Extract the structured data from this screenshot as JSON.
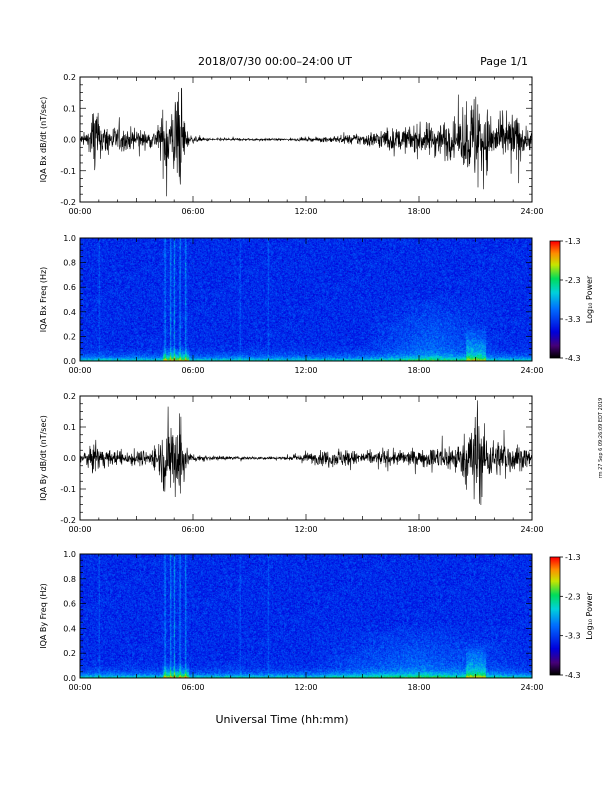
{
  "header": {
    "title": "2018/07/30  00:00–24:00 UT",
    "page": "Page 1/1"
  },
  "side_note": "rm 27 Sep 6 09:26:09 EDT 2019",
  "footer": {
    "xlabel": "Universal Time (hh:mm)"
  },
  "chart_data": [
    {
      "type": "line",
      "ylabel": "IQA Bx dB/dt (nT/sec)",
      "xlim": [
        0,
        24
      ],
      "ylim": [
        -0.2,
        0.2
      ],
      "x_ticklabels": [
        "00:00",
        "06:00",
        "12:00",
        "18:00",
        "24:00"
      ],
      "y_ticklabels": [
        "0.2",
        "0.1",
        "0.0",
        "-0.1",
        "-0.2"
      ],
      "envelope_x": [
        0,
        0.5,
        0.8,
        1.0,
        1.5,
        2.0,
        2.5,
        3.0,
        3.5,
        4.0,
        4.3,
        4.6,
        4.8,
        5.0,
        5.2,
        5.4,
        5.6,
        5.8,
        6.2,
        7.0,
        8.0,
        9.0,
        10.0,
        11.0,
        12.0,
        13.0,
        14.0,
        15.0,
        16.0,
        17.0,
        18.0,
        19.0,
        19.5,
        20.0,
        20.5,
        21.0,
        21.2,
        21.5,
        21.8,
        22.0,
        22.5,
        23.0,
        23.5,
        24.0
      ],
      "envelope_amp": [
        0.02,
        0.04,
        0.2,
        0.07,
        0.06,
        0.05,
        0.04,
        0.05,
        0.03,
        0.04,
        0.08,
        0.2,
        0.09,
        0.18,
        0.2,
        0.2,
        0.06,
        0.02,
        0.01,
        0.005,
        0.005,
        0.004,
        0.004,
        0.004,
        0.006,
        0.01,
        0.015,
        0.025,
        0.04,
        0.045,
        0.06,
        0.07,
        0.08,
        0.06,
        0.12,
        0.2,
        0.2,
        0.12,
        0.12,
        0.09,
        0.07,
        0.12,
        0.06,
        0.04
      ]
    },
    {
      "type": "heatmap",
      "ylabel": "IQA Bx Freq (Hz)",
      "xlim": [
        0,
        24
      ],
      "ylim": [
        0,
        1.0
      ],
      "x_ticklabels": [
        "00:00",
        "06:00",
        "12:00",
        "18:00",
        "24:00"
      ],
      "y_ticklabels": [
        "1.0",
        "0.8",
        "0.6",
        "0.4",
        "0.2",
        "0.0"
      ],
      "colorbar": {
        "label": "Log₁₀ Power",
        "range": [
          -4.3,
          -1.3
        ],
        "ticklabels": [
          "-1.3",
          "-2.3",
          "-3.3",
          "-4.3"
        ]
      },
      "bright_bands_hours": [
        1.0,
        4.5,
        4.8,
        5.0,
        5.3,
        5.6,
        8.5,
        10.0
      ],
      "enhanced_region": {
        "x": [
          15,
          22.5
        ],
        "y": [
          0.0,
          0.55
        ]
      }
    },
    {
      "type": "line",
      "ylabel": "IQA By dB/dt (nT/sec)",
      "xlim": [
        0,
        24
      ],
      "ylim": [
        -0.2,
        0.2
      ],
      "x_ticklabels": [
        "00:00",
        "06:00",
        "12:00",
        "18:00",
        "24:00"
      ],
      "y_ticklabels": [
        "0.2",
        "0.1",
        "0.0",
        "-0.1",
        "-0.2"
      ],
      "envelope_x": [
        0,
        0.5,
        0.8,
        1.0,
        1.5,
        2.0,
        2.5,
        3.0,
        3.5,
        4.0,
        4.3,
        4.6,
        4.8,
        5.0,
        5.2,
        5.4,
        5.6,
        5.8,
        6.2,
        7.0,
        8.0,
        9.0,
        10.0,
        11.0,
        12.0,
        13.0,
        14.0,
        15.0,
        16.0,
        17.0,
        18.0,
        19.0,
        19.5,
        20.0,
        20.5,
        21.0,
        21.2,
        21.5,
        21.8,
        22.0,
        22.5,
        23.0,
        23.5,
        24.0
      ],
      "envelope_amp": [
        0.015,
        0.03,
        0.09,
        0.04,
        0.03,
        0.03,
        0.03,
        0.03,
        0.03,
        0.05,
        0.08,
        0.2,
        0.1,
        0.13,
        0.2,
        0.2,
        0.06,
        0.02,
        0.015,
        0.008,
        0.007,
        0.006,
        0.006,
        0.006,
        0.02,
        0.03,
        0.035,
        0.025,
        0.03,
        0.03,
        0.03,
        0.045,
        0.06,
        0.05,
        0.1,
        0.2,
        0.2,
        0.12,
        0.08,
        0.07,
        0.08,
        0.06,
        0.04,
        0.03
      ]
    },
    {
      "type": "heatmap",
      "ylabel": "IQA By Freq (Hz)",
      "xlim": [
        0,
        24
      ],
      "ylim": [
        0,
        1.0
      ],
      "x_ticklabels": [
        "00:00",
        "06:00",
        "12:00",
        "18:00",
        "24:00"
      ],
      "y_ticklabels": [
        "1.0",
        "0.8",
        "0.6",
        "0.4",
        "0.2",
        "0.0"
      ],
      "colorbar": {
        "label": "Log₁₀ Power",
        "range": [
          -4.3,
          -1.3
        ],
        "ticklabels": [
          "-1.3",
          "-2.3",
          "-3.3",
          "-4.3"
        ]
      },
      "bright_bands_hours": [
        1.0,
        4.5,
        4.8,
        5.0,
        5.3,
        5.6,
        8.5,
        10.0
      ],
      "enhanced_region": {
        "x": [
          12,
          24
        ],
        "y": [
          0.0,
          0.45
        ]
      }
    }
  ]
}
